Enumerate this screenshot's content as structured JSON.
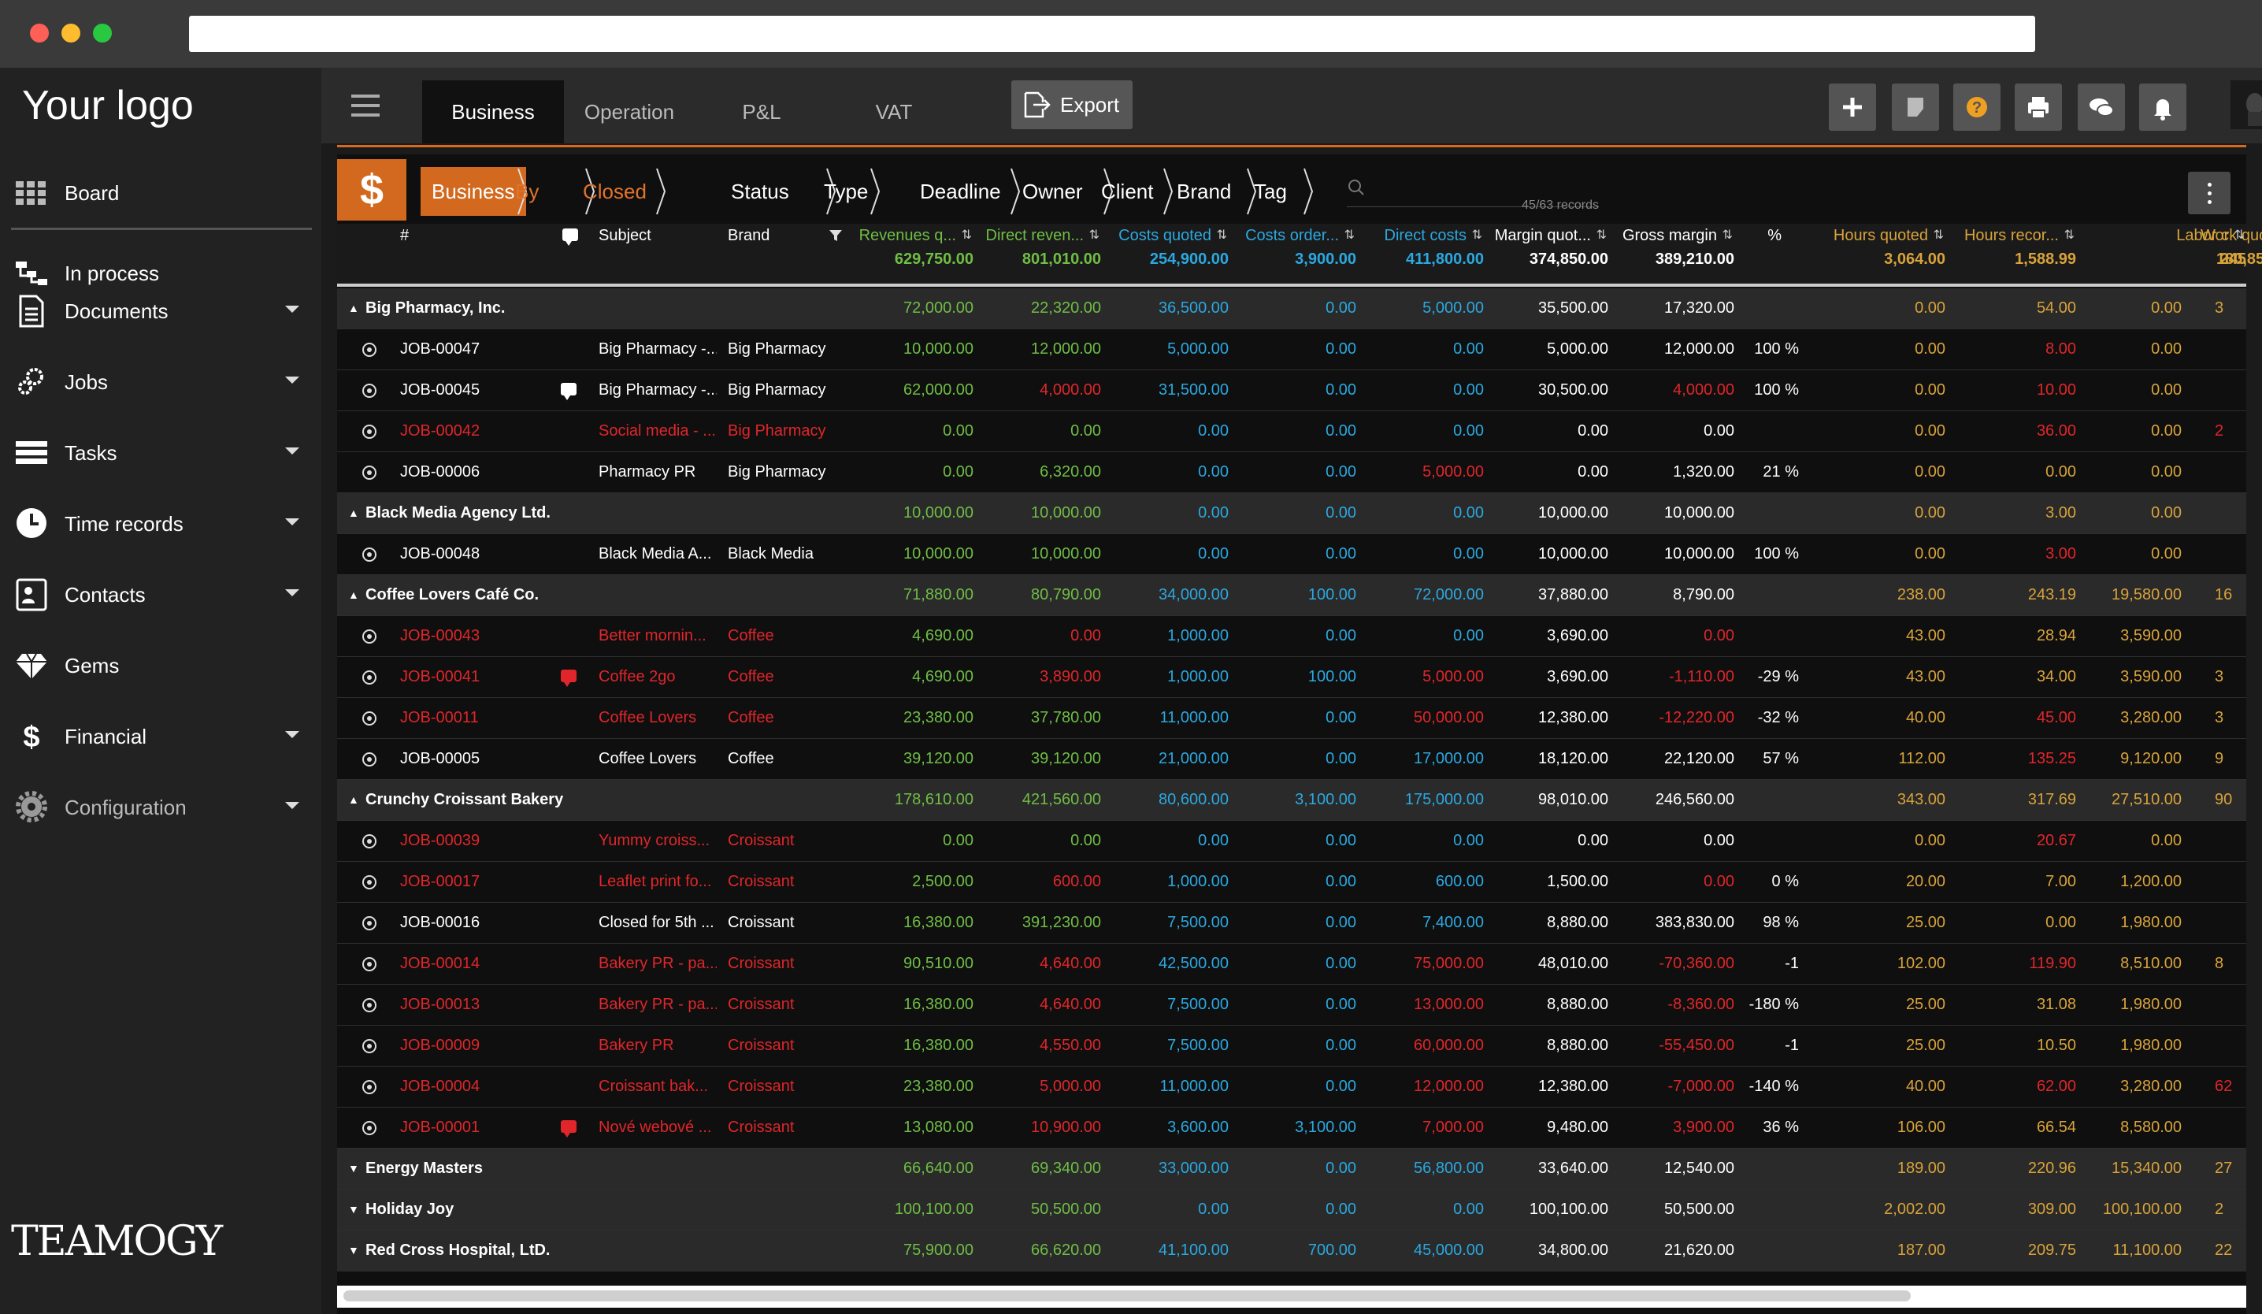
{
  "sidebar": {
    "logo": "Your logo",
    "items": [
      {
        "label": "Board",
        "icon": "grid-icon",
        "caret": false
      },
      {
        "label": "In process",
        "icon": "process-icon",
        "caret": false
      },
      {
        "label": "Documents",
        "icon": "document-icon",
        "caret": true
      },
      {
        "label": "Jobs",
        "icon": "gears-icon",
        "caret": true
      },
      {
        "label": "Tasks",
        "icon": "tasks-icon",
        "caret": true
      },
      {
        "label": "Time records",
        "icon": "clock-icon",
        "caret": true
      },
      {
        "label": "Contacts",
        "icon": "contact-card-icon",
        "caret": true
      },
      {
        "label": "Gems",
        "icon": "diamond-icon",
        "caret": false
      },
      {
        "label": "Financial",
        "icon": "dollar-icon",
        "caret": true
      },
      {
        "label": "Configuration",
        "icon": "gear-icon",
        "caret": true
      }
    ],
    "brand": "TEAMOGY"
  },
  "topbar": {
    "tabs": [
      "Business",
      "Operation",
      "P&L",
      "VAT"
    ],
    "export_label": "Export",
    "icons": [
      "plus-icon",
      "note-icon",
      "help-icon",
      "print-icon",
      "chat-icon",
      "bell-icon",
      "user-avatar"
    ]
  },
  "filter": {
    "symbol": "$",
    "crumbs": [
      "Business",
      "By client",
      "Closed",
      "Status date",
      "Type",
      "Deadline",
      "Owner",
      "Client",
      "Brand",
      "Tag"
    ],
    "records": "45/63 records"
  },
  "colors": {
    "green": "#6fbe45",
    "yellow": "#d8a33a",
    "blue": "#2ba8e0",
    "red": "#e0262a",
    "orange": "#d2691e"
  },
  "columns": [
    {
      "label": "#",
      "total": ""
    },
    {
      "label": "Subject",
      "total": ""
    },
    {
      "label": "Brand",
      "total": ""
    },
    {
      "label": "Revenues q...",
      "total": "629,750.00"
    },
    {
      "label": "Direct reven...",
      "total": "801,010.00"
    },
    {
      "label": "Costs quoted",
      "total": "254,900.00"
    },
    {
      "label": "Costs order...",
      "total": "3,900.00"
    },
    {
      "label": "Direct costs",
      "total": "411,800.00"
    },
    {
      "label": "Margin quot...",
      "total": "374,850.00"
    },
    {
      "label": "Gross margin",
      "total": "389,210.00"
    },
    {
      "label": "%",
      "total": ""
    },
    {
      "label": "Hours quoted",
      "total": "3,064.00"
    },
    {
      "label": "Hours recor...",
      "total": "1,588.99"
    },
    {
      "label": "Work quoted",
      "total": "180,850.00"
    },
    {
      "label": "Labor c",
      "total": "245"
    }
  ],
  "rows": [
    {
      "type": "group",
      "name": "Big Pharmacy, Inc.",
      "expanded": true,
      "vals": [
        "72,000.00",
        "22,320.00",
        "36,500.00",
        "0.00",
        "5,000.00",
        "35,500.00",
        "17,320.00",
        "",
        "0.00",
        "54.00",
        "0.00",
        "3"
      ],
      "neg": []
    },
    {
      "type": "job",
      "job": "JOB-00047",
      "subject": "Big Pharmacy -...",
      "brand": "Big Pharmacy",
      "red": false,
      "comment": false,
      "vals": [
        "10,000.00",
        "12,000.00",
        "5,000.00",
        "0.00",
        "0.00",
        "5,000.00",
        "12,000.00",
        "100 %",
        "0.00",
        "8.00",
        "0.00",
        ""
      ],
      "neg": [
        9
      ]
    },
    {
      "type": "job",
      "job": "JOB-00045",
      "subject": "Big Pharmacy -...",
      "brand": "Big Pharmacy",
      "red": false,
      "comment": "white",
      "vals": [
        "62,000.00",
        "4,000.00",
        "31,500.00",
        "0.00",
        "0.00",
        "30,500.00",
        "4,000.00",
        "100 %",
        "0.00",
        "10.00",
        "0.00",
        ""
      ],
      "neg": [
        1,
        6,
        9
      ]
    },
    {
      "type": "job",
      "job": "JOB-00042",
      "subject": "Social media - ...",
      "brand": "Big Pharmacy",
      "red": true,
      "comment": false,
      "vals": [
        "0.00",
        "0.00",
        "0.00",
        "0.00",
        "0.00",
        "0.00",
        "0.00",
        "",
        "0.00",
        "36.00",
        "0.00",
        "2"
      ],
      "neg": [
        9,
        11
      ]
    },
    {
      "type": "job",
      "job": "JOB-00006",
      "subject": "Pharmacy PR",
      "brand": "Big Pharmacy",
      "red": false,
      "comment": false,
      "vals": [
        "0.00",
        "6,320.00",
        "0.00",
        "0.00",
        "5,000.00",
        "0.00",
        "1,320.00",
        "21 %",
        "0.00",
        "0.00",
        "0.00",
        ""
      ],
      "neg": [
        4
      ]
    },
    {
      "type": "group",
      "name": "Black Media Agency Ltd.",
      "expanded": true,
      "vals": [
        "10,000.00",
        "10,000.00",
        "0.00",
        "0.00",
        "0.00",
        "10,000.00",
        "10,000.00",
        "",
        "0.00",
        "3.00",
        "0.00",
        ""
      ],
      "neg": []
    },
    {
      "type": "job",
      "job": "JOB-00048",
      "subject": "Black Media A...",
      "brand": "Black Media",
      "red": false,
      "comment": false,
      "vals": [
        "10,000.00",
        "10,000.00",
        "0.00",
        "0.00",
        "0.00",
        "10,000.00",
        "10,000.00",
        "100 %",
        "0.00",
        "3.00",
        "0.00",
        ""
      ],
      "neg": [
        9
      ]
    },
    {
      "type": "group",
      "name": "Coffee Lovers Café Co.",
      "expanded": true,
      "vals": [
        "71,880.00",
        "80,790.00",
        "34,000.00",
        "100.00",
        "72,000.00",
        "37,880.00",
        "8,790.00",
        "",
        "238.00",
        "243.19",
        "19,580.00",
        "16"
      ],
      "neg": []
    },
    {
      "type": "job",
      "job": "JOB-00043",
      "subject": "Better mornin...",
      "brand": "Coffee",
      "red": true,
      "comment": false,
      "vals": [
        "4,690.00",
        "0.00",
        "1,000.00",
        "0.00",
        "0.00",
        "3,690.00",
        "0.00",
        "",
        "43.00",
        "28.94",
        "3,590.00",
        ""
      ],
      "neg": [
        1,
        6
      ]
    },
    {
      "type": "job",
      "job": "JOB-00041",
      "subject": "Coffee 2go",
      "brand": "Coffee",
      "red": true,
      "comment": "red",
      "vals": [
        "4,690.00",
        "3,890.00",
        "1,000.00",
        "100.00",
        "5,000.00",
        "3,690.00",
        "-1,110.00",
        "-29 %",
        "43.00",
        "34.00",
        "3,590.00",
        "3"
      ],
      "neg": [
        1,
        4,
        6
      ]
    },
    {
      "type": "job",
      "job": "JOB-00011",
      "subject": "Coffee Lovers",
      "brand": "Coffee",
      "red": true,
      "comment": false,
      "vals": [
        "23,380.00",
        "37,780.00",
        "11,000.00",
        "0.00",
        "50,000.00",
        "12,380.00",
        "-12,220.00",
        "-32 %",
        "40.00",
        "45.00",
        "3,280.00",
        "3"
      ],
      "neg": [
        4,
        6,
        9
      ]
    },
    {
      "type": "job",
      "job": "JOB-00005",
      "subject": "Coffee Lovers",
      "brand": "Coffee",
      "red": false,
      "comment": false,
      "vals": [
        "39,120.00",
        "39,120.00",
        "21,000.00",
        "0.00",
        "17,000.00",
        "18,120.00",
        "22,120.00",
        "57 %",
        "112.00",
        "135.25",
        "9,120.00",
        "9"
      ],
      "neg": [
        9
      ]
    },
    {
      "type": "group",
      "name": "Crunchy Croissant Bakery",
      "expanded": true,
      "vals": [
        "178,610.00",
        "421,560.00",
        "80,600.00",
        "3,100.00",
        "175,000.00",
        "98,010.00",
        "246,560.00",
        "",
        "343.00",
        "317.69",
        "27,510.00",
        "90"
      ],
      "neg": []
    },
    {
      "type": "job",
      "job": "JOB-00039",
      "subject": "Yummy croiss...",
      "brand": "Croissant",
      "red": true,
      "comment": false,
      "vals": [
        "0.00",
        "0.00",
        "0.00",
        "0.00",
        "0.00",
        "0.00",
        "0.00",
        "",
        "0.00",
        "20.67",
        "0.00",
        ""
      ],
      "neg": [
        9
      ]
    },
    {
      "type": "job",
      "job": "JOB-00017",
      "subject": "Leaflet print fo...",
      "brand": "Croissant",
      "red": true,
      "comment": false,
      "vals": [
        "2,500.00",
        "600.00",
        "1,000.00",
        "0.00",
        "600.00",
        "1,500.00",
        "0.00",
        "0 %",
        "20.00",
        "7.00",
        "1,200.00",
        ""
      ],
      "neg": [
        1,
        6
      ]
    },
    {
      "type": "job",
      "job": "JOB-00016",
      "subject": "Closed for 5th ...",
      "brand": "Croissant",
      "red": false,
      "comment": false,
      "vals": [
        "16,380.00",
        "391,230.00",
        "7,500.00",
        "0.00",
        "7,400.00",
        "8,880.00",
        "383,830.00",
        "98 %",
        "25.00",
        "0.00",
        "1,980.00",
        ""
      ],
      "neg": []
    },
    {
      "type": "job",
      "job": "JOB-00014",
      "subject": "Bakery PR - pa...",
      "brand": "Croissant",
      "red": true,
      "comment": false,
      "vals": [
        "90,510.00",
        "4,640.00",
        "42,500.00",
        "0.00",
        "75,000.00",
        "48,010.00",
        "-70,360.00",
        "-1",
        "102.00",
        "119.90",
        "8,510.00",
        "8"
      ],
      "neg": [
        1,
        4,
        6,
        9
      ]
    },
    {
      "type": "job",
      "job": "JOB-00013",
      "subject": "Bakery PR - pa...",
      "brand": "Croissant",
      "red": true,
      "comment": false,
      "vals": [
        "16,380.00",
        "4,640.00",
        "7,500.00",
        "0.00",
        "13,000.00",
        "8,880.00",
        "-8,360.00",
        "-180 %",
        "25.00",
        "31.08",
        "1,980.00",
        ""
      ],
      "neg": [
        1,
        4,
        6
      ]
    },
    {
      "type": "job",
      "job": "JOB-00009",
      "subject": "Bakery PR",
      "brand": "Croissant",
      "red": true,
      "comment": false,
      "vals": [
        "16,380.00",
        "4,550.00",
        "7,500.00",
        "0.00",
        "60,000.00",
        "8,880.00",
        "-55,450.00",
        "-1",
        "25.00",
        "10.50",
        "1,980.00",
        ""
      ],
      "neg": [
        1,
        4,
        6
      ]
    },
    {
      "type": "job",
      "job": "JOB-00004",
      "subject": "Croissant bak...",
      "brand": "Croissant",
      "red": true,
      "comment": false,
      "vals": [
        "23,380.00",
        "5,000.00",
        "11,000.00",
        "0.00",
        "12,000.00",
        "12,380.00",
        "-7,000.00",
        "-140 %",
        "40.00",
        "62.00",
        "3,280.00",
        "62"
      ],
      "neg": [
        1,
        4,
        6,
        9,
        11
      ]
    },
    {
      "type": "job",
      "job": "JOB-00001",
      "subject": "Nové webové ...",
      "brand": "Croissant",
      "red": true,
      "comment": "red",
      "vals": [
        "13,080.00",
        "10,900.00",
        "3,600.00",
        "3,100.00",
        "7,000.00",
        "9,480.00",
        "3,900.00",
        "36 %",
        "106.00",
        "66.54",
        "8,580.00",
        ""
      ],
      "neg": [
        1,
        4,
        6
      ]
    },
    {
      "type": "group",
      "name": "Energy Masters",
      "expanded": false,
      "vals": [
        "66,640.00",
        "69,340.00",
        "33,000.00",
        "0.00",
        "56,800.00",
        "33,640.00",
        "12,540.00",
        "",
        "189.00",
        "220.96",
        "15,340.00",
        "27"
      ],
      "neg": []
    },
    {
      "type": "group",
      "name": "Holiday Joy",
      "expanded": false,
      "vals": [
        "100,100.00",
        "50,500.00",
        "0.00",
        "0.00",
        "0.00",
        "100,100.00",
        "50,500.00",
        "",
        "2,002.00",
        "309.00",
        "100,100.00",
        "2"
      ],
      "neg": []
    },
    {
      "type": "group",
      "name": "Red Cross Hospital, LtD.",
      "expanded": false,
      "vals": [
        "75,900.00",
        "66,620.00",
        "41,100.00",
        "700.00",
        "45,000.00",
        "34,800.00",
        "21,620.00",
        "",
        "187.00",
        "209.75",
        "11,100.00",
        "22"
      ],
      "neg": []
    }
  ]
}
